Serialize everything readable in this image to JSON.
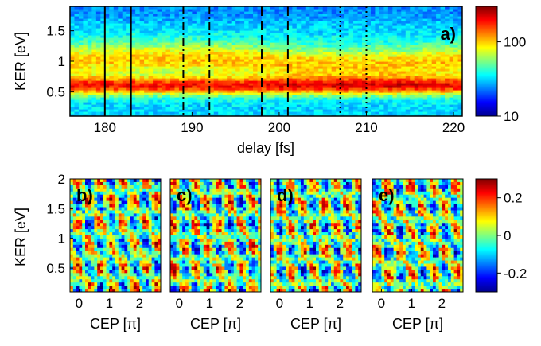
{
  "chart_data": [
    {
      "type": "heatmap",
      "panel_label": "a)",
      "xlabel": "delay [fs]",
      "ylabel": "KER [eV]",
      "xlim": [
        176,
        221
      ],
      "ylim": [
        0.1,
        1.9
      ],
      "xticks": [
        180,
        190,
        200,
        210,
        220
      ],
      "yticks": [
        0.5,
        1,
        1.5
      ],
      "xtick_labels": [
        "180",
        "190",
        "200",
        "210",
        "220"
      ],
      "ytick_labels": [
        "0.5",
        "1",
        "1.5"
      ],
      "colorbar": {
        "scale": "log",
        "range": [
          10,
          300
        ],
        "ticks": [
          10,
          100
        ],
        "tick_labels": [
          "10",
          "100"
        ],
        "colormap": "jet"
      },
      "intensity_peaks_ker": [
        0.6,
        1.0
      ],
      "vertical_markers": [
        {
          "style": "solid",
          "x": [
            180,
            183
          ]
        },
        {
          "style": "dash-dot",
          "x": [
            189,
            192
          ]
        },
        {
          "style": "dashed",
          "x": [
            198,
            201
          ]
        },
        {
          "style": "dotted",
          "x": [
            207,
            210
          ]
        }
      ]
    },
    {
      "type": "heatmap",
      "panel_label": "b)",
      "xlabel": "CEP [π]",
      "ylabel": "KER [eV]",
      "xlim": [
        -0.3,
        2.7
      ],
      "ylim": [
        0.1,
        2.0
      ],
      "xticks": [
        0,
        1,
        2
      ],
      "xtick_labels": [
        "0",
        "1",
        "2"
      ],
      "yticks": [
        0.5,
        1,
        1.5,
        2
      ],
      "ytick_labels": [
        "0.5",
        "1",
        "1.5",
        "2"
      ]
    },
    {
      "type": "heatmap",
      "panel_label": "c)",
      "xlabel": "CEP [π]",
      "xlim": [
        -0.3,
        2.7
      ],
      "ylim": [
        0.1,
        2.0
      ],
      "xticks": [
        0,
        1,
        2
      ],
      "xtick_labels": [
        "0",
        "1",
        "2"
      ]
    },
    {
      "type": "heatmap",
      "panel_label": "d)",
      "xlabel": "CEP [π]",
      "xlim": [
        -0.3,
        2.7
      ],
      "ylim": [
        0.1,
        2.0
      ],
      "xticks": [
        0,
        1,
        2
      ],
      "xtick_labels": [
        "0",
        "1",
        "2"
      ]
    },
    {
      "type": "heatmap",
      "panel_label": "e)",
      "xlabel": "CEP [π]",
      "xlim": [
        -0.3,
        2.7
      ],
      "ylim": [
        0.1,
        2.0
      ],
      "xticks": [
        0,
        1,
        2
      ],
      "xtick_labels": [
        "0",
        "1",
        "2"
      ],
      "colorbar": {
        "scale": "linear",
        "range": [
          -0.3,
          0.3
        ],
        "ticks": [
          -0.2,
          0,
          0.2
        ],
        "tick_labels": [
          "-0.2",
          "0",
          "0.2"
        ],
        "colormap": "jet"
      }
    }
  ]
}
